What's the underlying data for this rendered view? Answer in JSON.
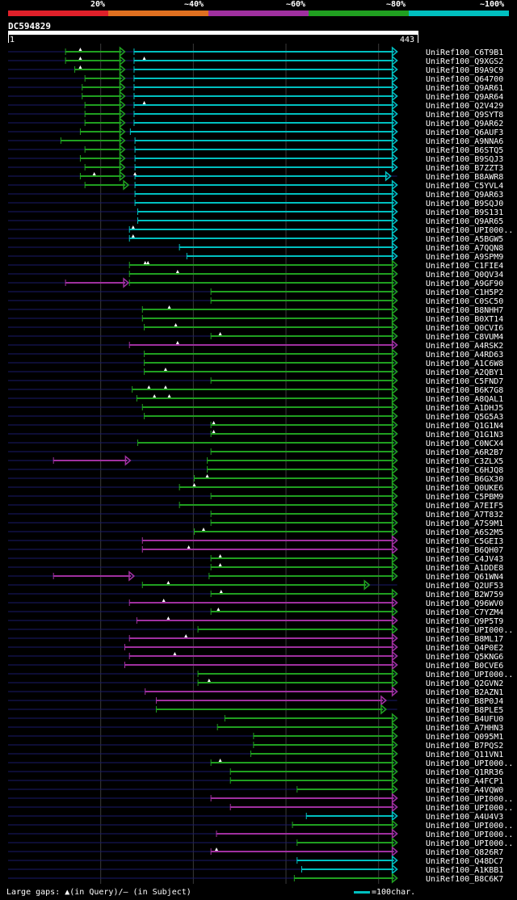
{
  "legend": {
    "labels": [
      "20%",
      "~40%",
      "~60%",
      "~80%",
      "~100%"
    ],
    "colors": [
      "#e0202a",
      "#e07020",
      "#a030a0",
      "#20a020",
      "#00c0c0"
    ]
  },
  "query": {
    "name": "DC594829",
    "start": "1",
    "end": "443"
  },
  "footer": {
    "gaps": "Large gaps: ▲(in Query)/— (in Subject)",
    "scale": "=100char."
  },
  "chart_data": {
    "type": "alignment-overview",
    "query_length": 443,
    "color_map": {
      "c": "#00c0c0",
      "g": "#20a020",
      "m": "#a030a0"
    },
    "hits": [
      {
        "name": "UniRef100_C6T9B1",
        "segs": [
          [
            62,
            126,
            "g"
          ],
          [
            136,
            420,
            "c"
          ]
        ],
        "marks": [
          78
        ]
      },
      {
        "name": "UniRef100_Q9XGS2",
        "segs": [
          [
            62,
            126,
            "g"
          ],
          [
            136,
            420,
            "c"
          ]
        ],
        "marks": [
          78,
          147
        ]
      },
      {
        "name": "UniRef100_B9A9C9",
        "segs": [
          [
            72,
            126,
            "g"
          ],
          [
            136,
            420,
            "c"
          ]
        ],
        "marks": [
          78
        ]
      },
      {
        "name": "UniRef100_Q64700",
        "segs": [
          [
            83,
            126,
            "g"
          ],
          [
            136,
            420,
            "c"
          ]
        ],
        "marks": []
      },
      {
        "name": "UniRef100_Q9AR61",
        "segs": [
          [
            80,
            126,
            "g"
          ],
          [
            136,
            420,
            "c"
          ]
        ],
        "marks": []
      },
      {
        "name": "UniRef100_Q9AR64",
        "segs": [
          [
            80,
            126,
            "g"
          ],
          [
            136,
            420,
            "c"
          ]
        ],
        "marks": []
      },
      {
        "name": "UniRef100_Q2V429",
        "segs": [
          [
            83,
            126,
            "g"
          ],
          [
            136,
            420,
            "c"
          ]
        ],
        "marks": [
          147
        ]
      },
      {
        "name": "UniRef100_Q9SYT8",
        "segs": [
          [
            83,
            126,
            "g"
          ],
          [
            136,
            420,
            "c"
          ]
        ],
        "marks": []
      },
      {
        "name": "UniRef100_Q9AR62",
        "segs": [
          [
            83,
            126,
            "g"
          ],
          [
            136,
            420,
            "c"
          ]
        ],
        "marks": []
      },
      {
        "name": "UniRef100_Q6AUF3",
        "segs": [
          [
            78,
            126,
            "g"
          ],
          [
            132,
            420,
            "c"
          ]
        ],
        "marks": []
      },
      {
        "name": "UniRef100_A9NNA6",
        "segs": [
          [
            57,
            126,
            "g"
          ],
          [
            137,
            420,
            "c"
          ]
        ],
        "marks": []
      },
      {
        "name": "UniRef100_B6STQ5",
        "segs": [
          [
            83,
            126,
            "g"
          ],
          [
            137,
            420,
            "c"
          ]
        ],
        "marks": []
      },
      {
        "name": "UniRef100_B9SQJ3",
        "segs": [
          [
            78,
            126,
            "g"
          ],
          [
            137,
            420,
            "c"
          ]
        ],
        "marks": []
      },
      {
        "name": "UniRef100_B7ZZT3",
        "segs": [
          [
            83,
            126,
            "g"
          ],
          [
            137,
            420,
            "c"
          ]
        ],
        "marks": []
      },
      {
        "name": "UniRef100_B8AWR8",
        "segs": [
          [
            78,
            126,
            "g"
          ],
          [
            137,
            413,
            "c"
          ]
        ],
        "marks": [
          93,
          137
        ]
      },
      {
        "name": "UniRef100_C5YVL4",
        "segs": [
          [
            83,
            130,
            "g"
          ],
          [
            137,
            420,
            "c"
          ]
        ],
        "marks": []
      },
      {
        "name": "UniRef100_Q9AR63",
        "segs": [
          [
            137,
            420,
            "c"
          ]
        ],
        "marks": []
      },
      {
        "name": "UniRef100_B9SQJ0",
        "segs": [
          [
            137,
            420,
            "c"
          ]
        ],
        "marks": []
      },
      {
        "name": "UniRef100_B9S131",
        "segs": [
          [
            140,
            420,
            "c"
          ]
        ],
        "marks": []
      },
      {
        "name": "UniRef100_Q9AR65",
        "segs": [
          [
            140,
            420,
            "c"
          ]
        ],
        "marks": []
      },
      {
        "name": "UniRef100_UPI000..",
        "segs": [
          [
            131,
            420,
            "c"
          ]
        ],
        "marks": [
          135
        ]
      },
      {
        "name": "UniRef100_A5BGW5",
        "segs": [
          [
            131,
            420,
            "c"
          ]
        ],
        "marks": [
          135
        ]
      },
      {
        "name": "UniRef100_A7QQN8",
        "segs": [
          [
            185,
            420,
            "c"
          ]
        ],
        "marks": []
      },
      {
        "name": "UniRef100_A9SPM9",
        "segs": [
          [
            193,
            420,
            "c"
          ]
        ],
        "marks": []
      },
      {
        "name": "UniRef100_C1FIE4",
        "segs": [
          [
            131,
            420,
            "g"
          ]
        ],
        "marks": [
          148,
          151
        ]
      },
      {
        "name": "UniRef100_Q0QV34",
        "segs": [
          [
            131,
            420,
            "g"
          ]
        ],
        "marks": [
          183
        ]
      },
      {
        "name": "UniRef100_A9GF90",
        "segs": [
          [
            62,
            130,
            "m"
          ],
          [
            131,
            420,
            "g"
          ]
        ],
        "marks": []
      },
      {
        "name": "UniRef100_C1H5P2",
        "segs": [
          [
            219,
            420,
            "g"
          ]
        ],
        "marks": []
      },
      {
        "name": "UniRef100_C0SC50",
        "segs": [
          [
            219,
            420,
            "g"
          ]
        ],
        "marks": []
      },
      {
        "name": "UniRef100_B8NHH7",
        "segs": [
          [
            145,
            420,
            "g"
          ]
        ],
        "marks": [
          174
        ]
      },
      {
        "name": "UniRef100_B0XT14",
        "segs": [
          [
            145,
            420,
            "g"
          ]
        ],
        "marks": []
      },
      {
        "name": "UniRef100_Q0CVI6",
        "segs": [
          [
            147,
            420,
            "g"
          ]
        ],
        "marks": [
          181
        ]
      },
      {
        "name": "UniRef100_C8VUM4",
        "segs": [
          [
            219,
            420,
            "g"
          ]
        ],
        "marks": [
          229
        ]
      },
      {
        "name": "UniRef100_A4RSK2",
        "segs": [
          [
            131,
            420,
            "m"
          ]
        ],
        "marks": [
          183
        ]
      },
      {
        "name": "UniRef100_A4RD63",
        "segs": [
          [
            147,
            420,
            "g"
          ]
        ],
        "marks": []
      },
      {
        "name": "UniRef100_A1C6W8",
        "segs": [
          [
            147,
            420,
            "g"
          ]
        ],
        "marks": []
      },
      {
        "name": "UniRef100_A2QBY1",
        "segs": [
          [
            147,
            420,
            "g"
          ]
        ],
        "marks": [
          170
        ]
      },
      {
        "name": "UniRef100_C5FND7",
        "segs": [
          [
            219,
            420,
            "g"
          ]
        ],
        "marks": []
      },
      {
        "name": "UniRef100_B6K7G8",
        "segs": [
          [
            134,
            420,
            "g"
          ]
        ],
        "marks": [
          152,
          170
        ]
      },
      {
        "name": "UniRef100_A8QAL1",
        "segs": [
          [
            139,
            420,
            "g"
          ]
        ],
        "marks": [
          158,
          174
        ]
      },
      {
        "name": "UniRef100_A1DHJ5",
        "segs": [
          [
            145,
            420,
            "g"
          ]
        ],
        "marks": []
      },
      {
        "name": "UniRef100_Q5G5A3",
        "segs": [
          [
            147,
            420,
            "g"
          ]
        ],
        "marks": []
      },
      {
        "name": "UniRef100_Q1G1N4",
        "segs": [
          [
            219,
            420,
            "g"
          ]
        ],
        "marks": [
          222
        ]
      },
      {
        "name": "UniRef100_Q1G1N3",
        "segs": [
          [
            219,
            420,
            "g"
          ]
        ],
        "marks": [
          222
        ]
      },
      {
        "name": "UniRef100_C0NCX4",
        "segs": [
          [
            140,
            420,
            "g"
          ]
        ],
        "marks": []
      },
      {
        "name": "UniRef100_A6R2B7",
        "segs": [
          [
            219,
            420,
            "g"
          ]
        ],
        "marks": []
      },
      {
        "name": "UniRef100_C3ZLX5",
        "segs": [
          [
            49,
            132,
            "m"
          ],
          [
            215,
            420,
            "g"
          ]
        ],
        "marks": []
      },
      {
        "name": "UniRef100_C6HJQ8",
        "segs": [
          [
            215,
            420,
            "g"
          ]
        ],
        "marks": []
      },
      {
        "name": "UniRef100_B6GX30",
        "segs": [
          [
            201,
            420,
            "g"
          ]
        ],
        "marks": [
          215
        ]
      },
      {
        "name": "UniRef100_Q0UKE6",
        "segs": [
          [
            185,
            420,
            "g"
          ]
        ],
        "marks": [
          201
        ]
      },
      {
        "name": "UniRef100_C5PBM9",
        "segs": [
          [
            219,
            420,
            "g"
          ]
        ],
        "marks": []
      },
      {
        "name": "UniRef100_A7EIF5",
        "segs": [
          [
            185,
            420,
            "g"
          ]
        ],
        "marks": []
      },
      {
        "name": "UniRef100_A7T832",
        "segs": [
          [
            219,
            420,
            "g"
          ]
        ],
        "marks": []
      },
      {
        "name": "UniRef100_A7S9M1",
        "segs": [
          [
            219,
            420,
            "g"
          ]
        ],
        "marks": []
      },
      {
        "name": "UniRef100_A6S2M5",
        "segs": [
          [
            201,
            420,
            "g"
          ]
        ],
        "marks": [
          211
        ]
      },
      {
        "name": "UniRef100_C5GEI3",
        "segs": [
          [
            145,
            420,
            "m"
          ]
        ],
        "marks": []
      },
      {
        "name": "UniRef100_B6QH07",
        "segs": [
          [
            145,
            420,
            "m"
          ]
        ],
        "marks": [
          195
        ]
      },
      {
        "name": "UniRef100_C4JV43",
        "segs": [
          [
            219,
            420,
            "g"
          ]
        ],
        "marks": [
          229
        ]
      },
      {
        "name": "UniRef100_A1DDE8",
        "segs": [
          [
            219,
            420,
            "g"
          ]
        ],
        "marks": [
          229
        ]
      },
      {
        "name": "UniRef100_Q61WN4",
        "segs": [
          [
            49,
            136,
            "m"
          ],
          [
            217,
            420,
            "g"
          ]
        ],
        "marks": []
      },
      {
        "name": "UniRef100_Q2UF53",
        "segs": [
          [
            145,
            390,
            "g"
          ]
        ],
        "marks": [
          173
        ]
      },
      {
        "name": "UniRef100_B2W759",
        "segs": [
          [
            219,
            420,
            "g"
          ]
        ],
        "marks": [
          230
        ]
      },
      {
        "name": "UniRef100_Q96WV0",
        "segs": [
          [
            131,
            420,
            "m"
          ]
        ],
        "marks": [
          168
        ]
      },
      {
        "name": "UniRef100_C7YZM4",
        "segs": [
          [
            219,
            420,
            "g"
          ]
        ],
        "marks": [
          227
        ]
      },
      {
        "name": "UniRef100_Q9P5T9",
        "segs": [
          [
            139,
            420,
            "m"
          ]
        ],
        "marks": [
          173
        ]
      },
      {
        "name": "UniRef100_UPI000..",
        "segs": [
          [
            205,
            420,
            "g"
          ]
        ],
        "marks": []
      },
      {
        "name": "UniRef100_B8ML17",
        "segs": [
          [
            131,
            420,
            "m"
          ]
        ],
        "marks": [
          192
        ]
      },
      {
        "name": "UniRef100_Q4P0E2",
        "segs": [
          [
            126,
            420,
            "m"
          ]
        ],
        "marks": []
      },
      {
        "name": "UniRef100_Q5KNG6",
        "segs": [
          [
            131,
            420,
            "m"
          ]
        ],
        "marks": [
          180
        ]
      },
      {
        "name": "UniRef100_B0CVE6",
        "segs": [
          [
            126,
            420,
            "m"
          ]
        ],
        "marks": []
      },
      {
        "name": "UniRef100_UPI000..",
        "segs": [
          [
            205,
            420,
            "g"
          ]
        ],
        "marks": []
      },
      {
        "name": "UniRef100_Q2GVN2",
        "segs": [
          [
            205,
            420,
            "g"
          ]
        ],
        "marks": [
          217
        ]
      },
      {
        "name": "UniRef100_B2AZN1",
        "segs": [
          [
            148,
            420,
            "m"
          ]
        ],
        "marks": []
      },
      {
        "name": "UniRef100_B8P0J4",
        "segs": [
          [
            160,
            408,
            "m"
          ]
        ],
        "marks": []
      },
      {
        "name": "UniRef100_B8PLE5",
        "segs": [
          [
            160,
            408,
            "g"
          ]
        ],
        "marks": []
      },
      {
        "name": "UniRef100_B4UFU0",
        "segs": [
          [
            234,
            420,
            "g"
          ]
        ],
        "marks": []
      },
      {
        "name": "UniRef100_A7HHN3",
        "segs": [
          [
            226,
            420,
            "g"
          ]
        ],
        "marks": []
      },
      {
        "name": "UniRef100_Q095M1",
        "segs": [
          [
            265,
            420,
            "g"
          ]
        ],
        "marks": []
      },
      {
        "name": "UniRef100_B7PQS2",
        "segs": [
          [
            265,
            420,
            "g"
          ]
        ],
        "marks": []
      },
      {
        "name": "UniRef100_Q11VN1",
        "segs": [
          [
            262,
            420,
            "g"
          ]
        ],
        "marks": []
      },
      {
        "name": "UniRef100_UPI000..",
        "segs": [
          [
            219,
            420,
            "g"
          ]
        ],
        "marks": [
          229
        ]
      },
      {
        "name": "UniRef100_Q1RR36",
        "segs": [
          [
            240,
            420,
            "g"
          ]
        ],
        "marks": []
      },
      {
        "name": "UniRef100_A4FCP1",
        "segs": [
          [
            240,
            420,
            "g"
          ]
        ],
        "marks": []
      },
      {
        "name": "UniRef100_A4VQW0",
        "segs": [
          [
            312,
            420,
            "g"
          ]
        ],
        "marks": []
      },
      {
        "name": "UniRef100_UPI000..",
        "segs": [
          [
            219,
            420,
            "m"
          ]
        ],
        "marks": []
      },
      {
        "name": "UniRef100_UPI000..",
        "segs": [
          [
            240,
            420,
            "m"
          ]
        ],
        "marks": []
      },
      {
        "name": "UniRef100_A4U4V3",
        "segs": [
          [
            322,
            420,
            "c"
          ]
        ],
        "marks": []
      },
      {
        "name": "UniRef100_UPI000..",
        "segs": [
          [
            307,
            420,
            "g"
          ]
        ],
        "marks": []
      },
      {
        "name": "UniRef100_UPI000..",
        "segs": [
          [
            225,
            420,
            "m"
          ]
        ],
        "marks": []
      },
      {
        "name": "UniRef100_UPI000..",
        "segs": [
          [
            312,
            420,
            "g"
          ]
        ],
        "marks": []
      },
      {
        "name": "UniRef100_Q826R7",
        "segs": [
          [
            219,
            420,
            "m"
          ]
        ],
        "marks": [
          225
        ]
      },
      {
        "name": "UniRef100_Q48DC7",
        "segs": [
          [
            312,
            420,
            "c"
          ]
        ],
        "marks": []
      },
      {
        "name": "UniRef100_A1KBB1",
        "segs": [
          [
            317,
            420,
            "c"
          ]
        ],
        "marks": []
      },
      {
        "name": "UniRef100_B8C6K7",
        "segs": [
          [
            309,
            420,
            "g"
          ]
        ],
        "marks": []
      }
    ]
  }
}
